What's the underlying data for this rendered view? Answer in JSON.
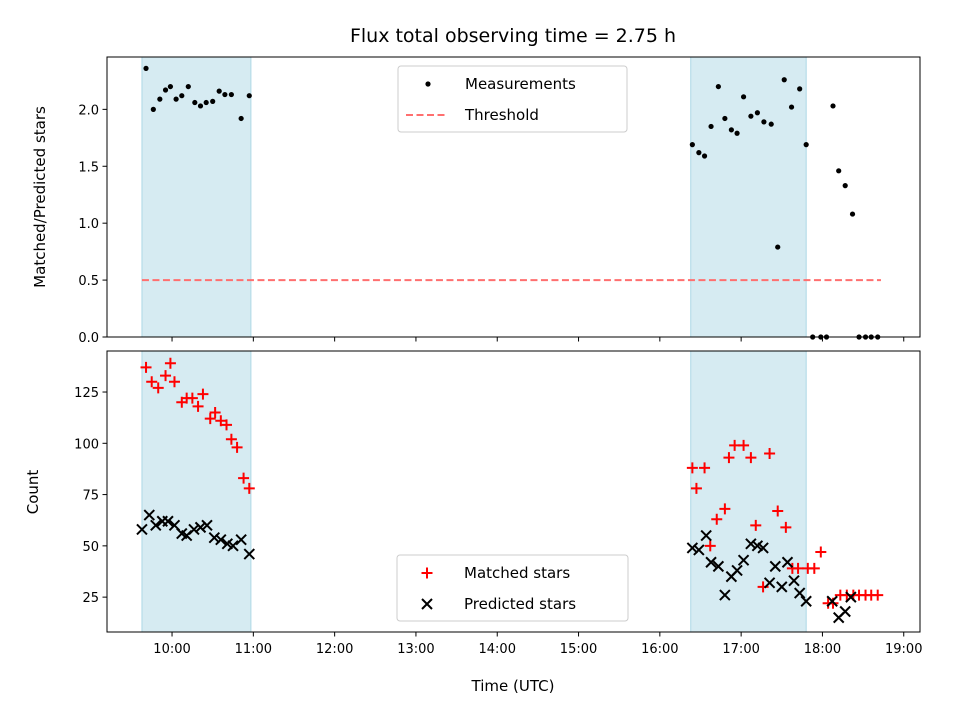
{
  "chart_data": {
    "title": "Flux total observing time = 2.75 h",
    "xlabel": "Time (UTC)",
    "x_ticks": [
      "10:00",
      "11:00",
      "12:00",
      "13:00",
      "14:00",
      "15:00",
      "16:00",
      "17:00",
      "18:00",
      "19:00"
    ],
    "x_range_hours": [
      9.2,
      19.2
    ],
    "shaded_intervals": [
      [
        9.63,
        10.97
      ],
      [
        16.38,
        17.8
      ]
    ],
    "shade_color": "#add8e6",
    "panels": [
      {
        "id": "ratio",
        "type": "scatter",
        "ylabel": "Matched/Predicted stars",
        "ylim": [
          0,
          2.46
        ],
        "y_ticks": [
          "0.0",
          "0.5",
          "1.0",
          "1.5",
          "2.0"
        ],
        "legend_position": "upper center",
        "series": [
          {
            "name": "Measurements",
            "marker": "dot",
            "color": "#000000",
            "x": [
              9.68,
              9.77,
              9.85,
              9.92,
              9.98,
              10.05,
              10.12,
              10.2,
              10.28,
              10.35,
              10.42,
              10.5,
              10.58,
              10.65,
              10.73,
              10.85,
              10.95,
              16.4,
              16.48,
              16.55,
              16.63,
              16.72,
              16.8,
              16.88,
              16.95,
              17.03,
              17.12,
              17.2,
              17.28,
              17.37,
              17.45,
              17.53,
              17.62,
              17.72,
              17.8,
              17.88,
              17.98,
              18.05,
              18.13,
              18.2,
              18.28,
              18.37,
              18.45,
              18.53,
              18.6,
              18.68
            ],
            "y": [
              2.36,
              2.0,
              2.09,
              2.17,
              2.2,
              2.09,
              2.12,
              2.2,
              2.06,
              2.03,
              2.06,
              2.07,
              2.16,
              2.13,
              2.13,
              1.92,
              2.12,
              1.69,
              1.62,
              1.59,
              1.85,
              2.2,
              1.92,
              1.82,
              1.79,
              2.11,
              1.94,
              1.97,
              1.89,
              1.87,
              0.79,
              2.26,
              2.02,
              2.18,
              1.69,
              0.0,
              0.0,
              0.0,
              2.03,
              1.46,
              1.33,
              1.08,
              0.0,
              0.0,
              0.0,
              0.0
            ]
          },
          {
            "name": "Threshold",
            "type": "line",
            "style": "dashed",
            "color": "#ff6f6f",
            "x": [
              9.63,
              18.72
            ],
            "y": [
              0.5,
              0.5
            ]
          }
        ]
      },
      {
        "id": "counts",
        "type": "scatter",
        "ylabel": "Count",
        "ylim": [
          8,
          145
        ],
        "y_ticks": [
          "25",
          "50",
          "75",
          "100",
          "125"
        ],
        "legend_position": "lower center",
        "series": [
          {
            "name": "Matched stars",
            "marker": "plus",
            "color": "#ff0000",
            "x": [
              9.68,
              9.75,
              9.83,
              9.92,
              9.98,
              10.03,
              10.12,
              10.18,
              10.25,
              10.32,
              10.38,
              10.47,
              10.53,
              10.6,
              10.67,
              10.73,
              10.8,
              10.88,
              10.95,
              16.4,
              16.45,
              16.55,
              16.62,
              16.7,
              16.8,
              16.85,
              16.92,
              17.03,
              17.12,
              17.18,
              17.27,
              17.35,
              17.45,
              17.55,
              17.63,
              17.7,
              17.82,
              17.9,
              17.98,
              18.07,
              18.13,
              18.22,
              18.3,
              18.38,
              18.45,
              18.53,
              18.6,
              18.68
            ],
            "y": [
              137,
              130,
              127,
              133,
              139,
              130,
              120,
              122,
              122,
              118,
              124,
              112,
              115,
              111,
              109,
              102,
              98,
              83,
              78,
              88,
              78,
              88,
              50,
              63,
              68,
              93,
              99,
              99,
              93,
              60,
              30,
              95,
              67,
              59,
              39,
              39,
              39,
              39,
              47,
              22,
              22,
              26,
              26,
              26,
              26,
              26,
              26,
              26
            ]
          },
          {
            "name": "Predicted stars",
            "marker": "x",
            "color": "#000000",
            "x": [
              9.63,
              9.72,
              9.8,
              9.88,
              9.95,
              10.03,
              10.12,
              10.18,
              10.27,
              10.35,
              10.43,
              10.52,
              10.6,
              10.68,
              10.75,
              10.85,
              10.95,
              16.4,
              16.48,
              16.57,
              16.63,
              16.72,
              16.8,
              16.88,
              16.95,
              17.03,
              17.12,
              17.2,
              17.27,
              17.35,
              17.42,
              17.5,
              17.57,
              17.65,
              17.72,
              17.8,
              18.12,
              18.2,
              18.28,
              18.35
            ],
            "y": [
              58,
              65,
              60,
              62,
              62,
              60,
              56,
              55,
              58,
              59,
              60,
              54,
              53,
              51,
              50,
              53,
              46,
              49,
              48,
              55,
              42,
              40,
              26,
              35,
              38,
              43,
              51,
              50,
              49,
              32,
              40,
              30,
              42,
              33,
              27,
              23,
              23,
              15,
              18,
              25
            ]
          }
        ]
      }
    ]
  }
}
